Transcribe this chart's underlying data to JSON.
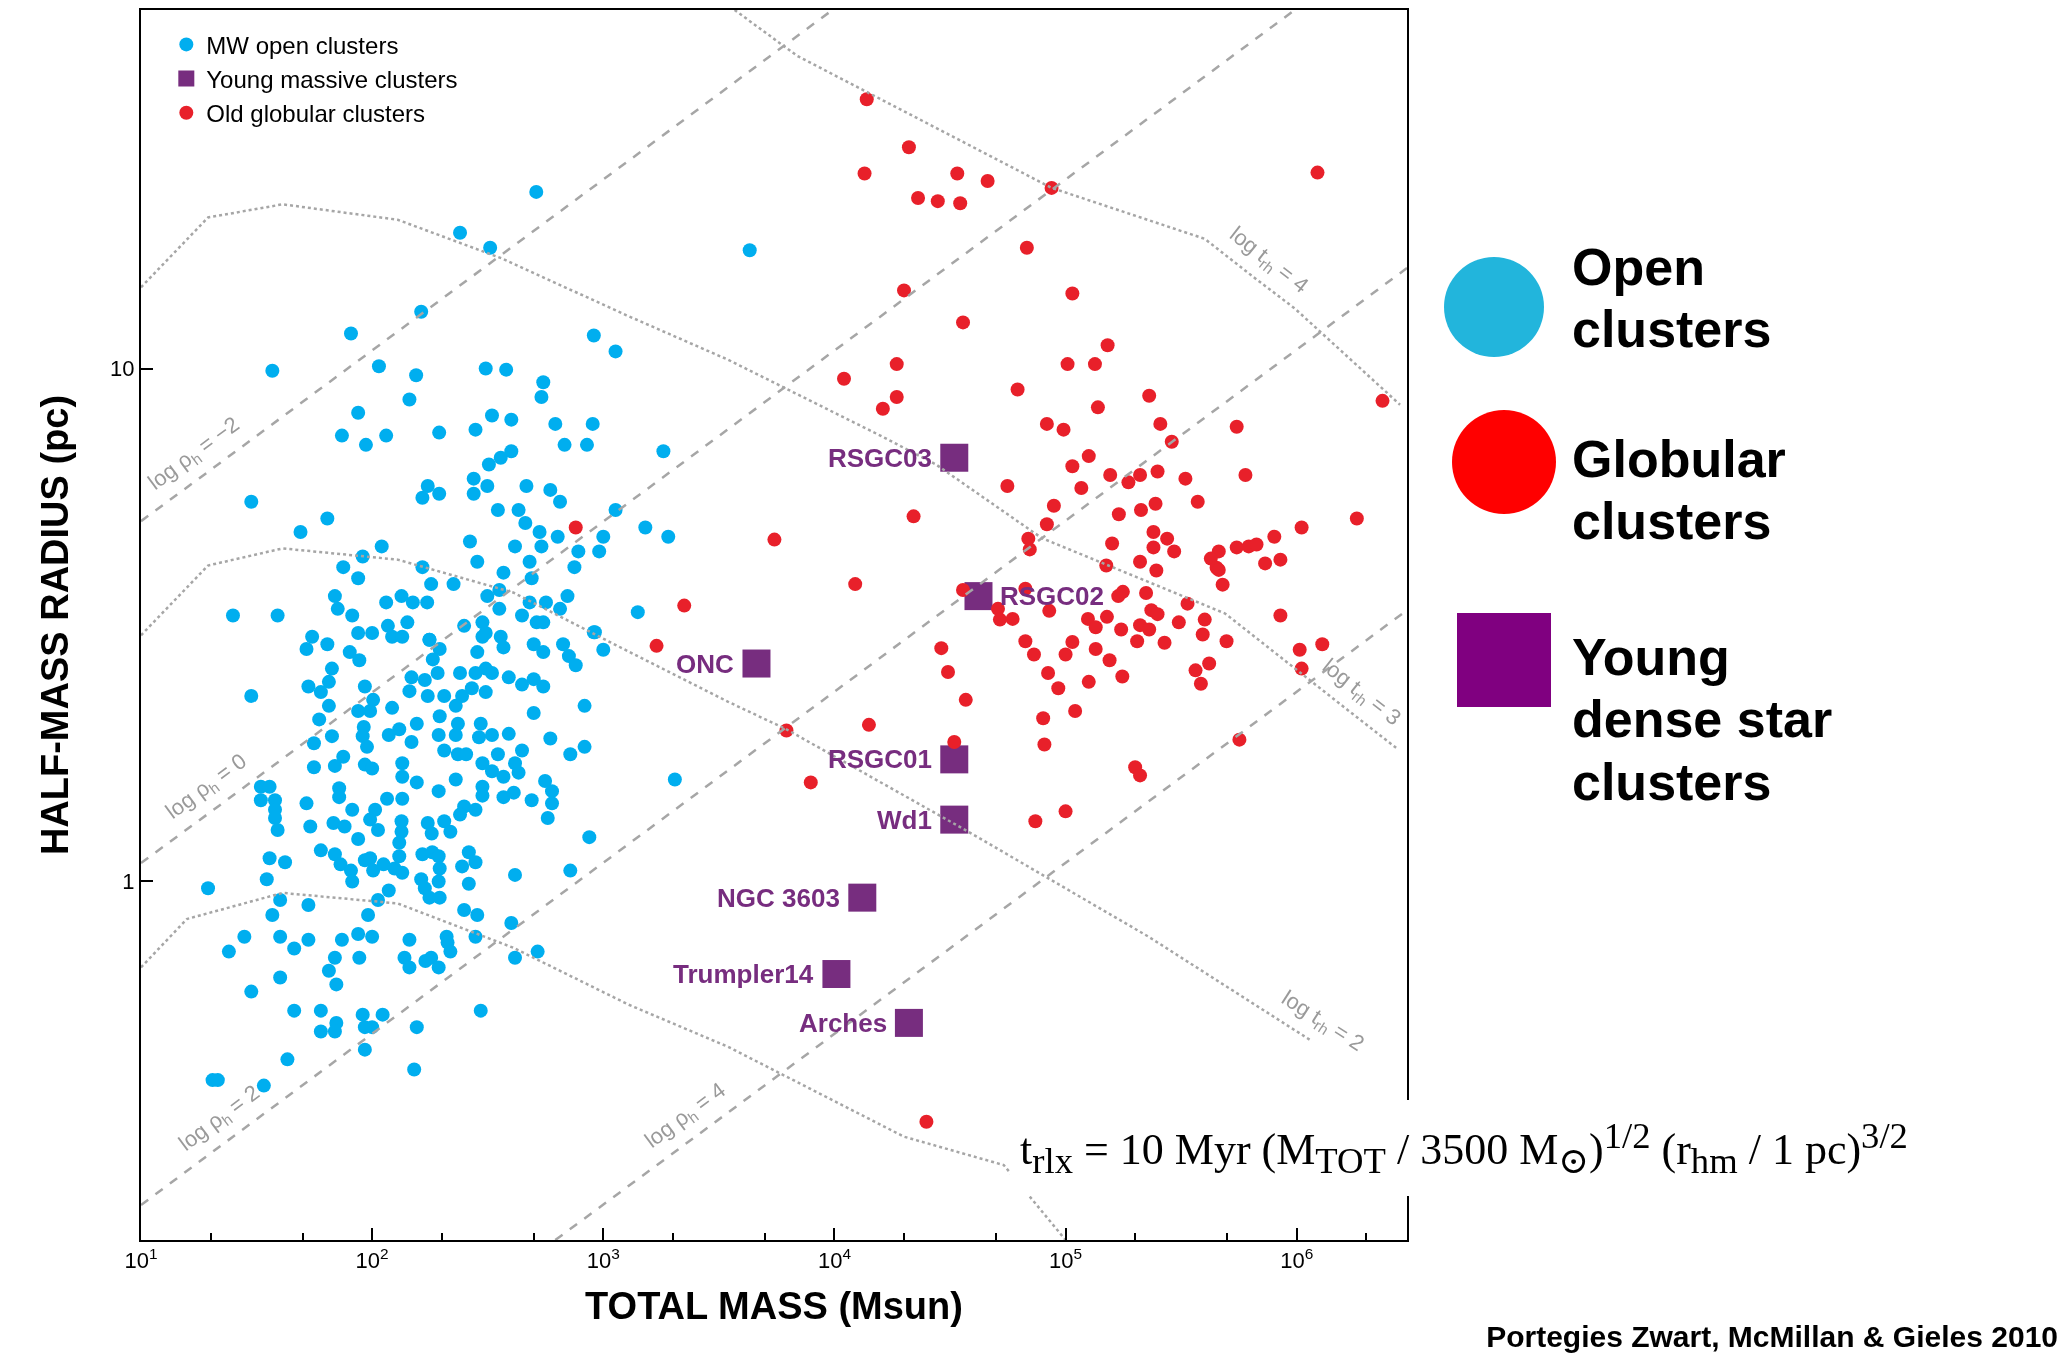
{
  "chart_data": {
    "type": "scatter",
    "xlabel": "TOTAL MASS (Msun)",
    "ylabel": "HALF-MASS RADIUS (pc)",
    "log": "xy",
    "grid": false,
    "legend": "top left",
    "xlim": [
      10,
      3000000
    ],
    "ylim": [
      0.2,
      50
    ],
    "xticks": [
      {
        "value": 10,
        "label": "10$^{1}$"
      },
      {
        "value": 100,
        "label": "10$^{2}$"
      },
      {
        "value": 1000,
        "label": "10$^{3}$"
      },
      {
        "value": 10000,
        "label": "10$^{4}$"
      },
      {
        "value": 100000,
        "label": "10$^{5}$"
      },
      {
        "value": 1000000,
        "label": "10$^{6}$"
      }
    ],
    "yticks": [
      1,
      10
    ],
    "series": [
      {
        "name": "MW open clusters",
        "color": "#00aeef",
        "marker": "circle",
        "x": [
          513,
          240,
          324,
          163,
          81,
          910,
          1130,
          37,
          107,
          310,
          380,
          155,
          550,
          540,
          145,
          87,
          330,
          400,
          74,
          115,
          195,
          280,
          94,
          620,
          900,
          680,
          850,
          1820,
          360,
          400,
          320,
          275,
          315,
          174,
          165,
          195,
          275,
          465,
          590,
          650,
          30,
          64,
          49,
          350,
          430,
          460,
          530,
          635,
          1000,
          1520,
          1910,
          1130,
          265,
          110,
          415,
          540,
          780,
          960,
          91,
          75,
          285,
          370,
          480,
          490,
          750,
          165,
          87,
          180,
          225,
          355,
          315,
          134,
          69,
          71,
          115,
          150,
          173,
          355,
          480,
          565,
          700,
          650,
          445,
          1410,
          25,
          39,
          82,
          142,
          250,
          300,
          515,
          550,
          117,
          55,
          87,
          100,
          310,
          360,
          910,
          122,
          177,
          4300,
          30,
          52,
          64,
          80,
          88,
          67,
          65,
          53,
          60,
          93,
          65,
          59,
          56,
          56,
          67,
          87,
          101,
          98,
          122,
          92,
          91,
          95,
          118,
          131,
          148,
          75,
          93,
          100,
          69,
          72,
          72,
          135,
          135,
          156,
          156,
          169,
          174,
          145,
          148,
          135,
          196,
          177,
          183,
          240,
          192,
          205,
          245,
          270,
          310,
          280,
          310,
          330,
          285,
          300,
          370,
          500,
          550,
          670,
          710,
          760,
          920,
          1000,
          390,
          445,
          500,
          550,
          500,
          830,
          196,
          230,
          235,
          230,
          194,
          290,
          330,
          390,
          295,
          205,
          235,
          255,
          350,
          300,
          330,
          415,
          430,
          370,
          445,
          590,
          720,
          830,
          2040,
          230,
          194,
          300,
          300,
          370,
          410,
          560,
          600,
          600,
          575,
          490,
          870,
          720,
          415,
          33,
          36,
          38,
          33,
          38,
          38,
          39,
          52,
          54,
          68,
          76,
          82,
          98,
          106,
          103,
          116,
          135,
          134,
          134,
          131,
          87,
          174,
          181,
          205,
          218,
          250,
          240,
          280,
          60,
          69,
          73,
          81,
          82,
          93,
          98,
          101,
          112,
          125,
          131,
          135,
          165,
          182,
          194,
          196,
          163,
          194,
          169,
          177,
          196,
          118,
          106,
          245,
          262,
          280,
          262,
          36,
          42,
          35,
          19.5,
          40,
          53,
          37,
          28,
          40,
          24,
          46,
          53,
          74,
          87,
          100,
          96,
          69,
          88,
          65,
          70,
          40,
          30,
          138,
          145,
          145,
          170,
          180,
          194,
          210,
          212,
          218,
          250,
          285,
          280,
          400,
          415,
          520,
          295,
          46,
          60,
          70,
          60,
          69,
          91,
          100,
          111,
          93,
          156,
          93,
          43,
          20.4,
          21.5,
          34,
          152
        ],
        "values": [
          22.1,
          18.4,
          17.2,
          12.9,
          11.7,
          11.6,
          10.8,
          9.9,
          10.1,
          10.0,
          9.95,
          9.7,
          9.4,
          8.8,
          8.7,
          8.2,
          8.1,
          7.95,
          7.4,
          7.4,
          7.5,
          7.6,
          7.1,
          7.8,
          7.8,
          7.1,
          7.1,
          6.9,
          6.7,
          6.9,
          6.5,
          6.1,
          5.9,
          5.9,
          5.6,
          5.7,
          5.7,
          5.9,
          5.8,
          5.5,
          5.5,
          5.1,
          4.8,
          5.3,
          5.3,
          5.0,
          4.8,
          4.7,
          4.7,
          4.9,
          4.7,
          5.3,
          4.6,
          4.5,
          4.5,
          4.5,
          4.4,
          4.4,
          4.3,
          4.1,
          4.2,
          4.0,
          4.2,
          3.9,
          4.1,
          4.1,
          3.9,
          3.8,
          3.8,
          3.7,
          3.6,
          3.6,
          3.6,
          3.4,
          3.5,
          3.5,
          3.5,
          3.4,
          3.5,
          3.5,
          3.6,
          3.4,
          3.3,
          3.35,
          3.3,
          3.3,
          3.3,
          3.2,
          3.15,
          3.2,
          3.2,
          3.2,
          3.15,
          3.0,
          3.05,
          3.05,
          3.05,
          3.0,
          3.06,
          3.0,
          2.96,
          17,
          2.3,
          2.84,
          2.9,
          2.8,
          2.7,
          2.6,
          2.45,
          2.4,
          2.34,
          2.4,
          2.2,
          2.07,
          1.86,
          1.67,
          1.92,
          2.15,
          2.26,
          2.15,
          2.18,
          2.0,
          1.92,
          1.83,
          1.93,
          1.98,
          1.87,
          1.75,
          1.69,
          1.66,
          1.68,
          1.52,
          1.46,
          1.7,
          1.6,
          1.56,
          2.03,
          2.47,
          2.3,
          2.35,
          2.5,
          3.0,
          2.84,
          2.96,
          2.71,
          2.55,
          2.55,
          2.3,
          2.3,
          2.38,
          2.34,
          2.55,
          2.6,
          2.55,
          2.8,
          3.0,
          2.86,
          2.9,
          2.8,
          2.9,
          2.75,
          2.64,
          3.06,
          2.83,
          2.5,
          2.42,
          2.48,
          2.4,
          2.13,
          2.2,
          2.1,
          2.2,
          2.03,
          1.93,
          1.93,
          1.91,
          1.93,
          1.94,
          2.03,
          1.8,
          1.77,
          1.77,
          1.77,
          1.7,
          1.64,
          1.7,
          1.63,
          1.6,
          1.8,
          1.9,
          1.77,
          1.83,
          1.58,
          1.58,
          1.5,
          1.53,
          1.47,
          1.46,
          1.49,
          1.57,
          1.5,
          1.42,
          1.33,
          1.44,
          1.22,
          1.05,
          1.03,
          1.53,
          1.53,
          1.44,
          1.44,
          1.38,
          1.33,
          1.26,
          1.42,
          1.28,
          1.3,
          1.28,
          1.38,
          1.32,
          1.26,
          1.38,
          1.45,
          1.45,
          1.31,
          1.25,
          1.19,
          1.21,
          1.3,
          1.24,
          1.31,
          1.25,
          1.4,
          1.35,
          1.38,
          1.15,
          1.13,
          1.08,
          1.05,
          1.0,
          1.1,
          1.11,
          1.05,
          1.08,
          1.06,
          1.12,
          1.04,
          1.13,
          1.14,
          1.12,
          1.06,
          1.01,
          1.0,
          0.97,
          0.93,
          0.93,
          0.96,
          0.92,
          1.07,
          1.14,
          1.09,
          0.99,
          1.11,
          1.09,
          1.01,
          0.97,
          0.92,
          0.9,
          0.86,
          0.78,
          0.78,
          0.73,
          0.74,
          0.77,
          0.77,
          0.79,
          0.78,
          0.86,
          0.71,
          0.71,
          0.67,
          0.63,
          0.65,
          0.61,
          0.71,
          0.68,
          0.77,
          0.7,
          0.71,
          0.68,
          0.78,
          0.76,
          0.73,
          0.88,
          0.86,
          0.78,
          0.83,
          0.71,
          0.73,
          0.56,
          0.56,
          0.56,
          0.53,
          0.51,
          0.51,
          0.55,
          0.52,
          0.55,
          0.52,
          0.52,
          0.47,
          0.45,
          0.41,
          0.41,
          0.4,
          0.43
        ]
      },
      {
        "name": "Young massive clusters",
        "color": "#772d7f",
        "marker": "square",
        "x": [
          33000,
          42000,
          4600,
          33000,
          33000,
          13200,
          10200,
          21000
        ],
        "values": [
          6.7,
          3.6,
          2.66,
          1.73,
          1.32,
          0.93,
          0.66,
          0.53
        ]
      },
      {
        "name": "Old globular clusters",
        "color": "#e8202a",
        "marker": "circle",
        "x": [
          13800,
          21000,
          13500,
          34000,
          46000,
          23000,
          28000,
          35000,
          87000,
          1230000,
          68000,
          20000,
          107000,
          36000,
          152000,
          102000,
          134000,
          18600,
          11000,
          18600,
          16200,
          62000,
          230000,
          2350000,
          138000,
          83000,
          98000,
          257000,
          288000,
          550000,
          126000,
          107000,
          156000,
          210000,
          250000,
          330000,
          600000,
          56000,
          117000,
          22000,
          187000,
          89000,
          170000,
          212000,
          245000,
          373000,
          1050000,
          1820000,
          83000,
          69000,
          70000,
          159000,
          240000,
          240000,
          275000,
          295000,
          460000,
          425000,
          550000,
          620000,
          670000,
          800000,
          730000,
          850000,
          150000,
          210000,
          247000,
          450000,
          5500,
          760,
          12300,
          2240,
          1700,
          36000,
          67000,
          51000,
          52000,
          59000,
          85000,
          67000,
          73000,
          29000,
          31000,
          37000,
          84000,
          100000,
          107000,
          125000,
          135000,
          135000,
          151000,
          155000,
          174000,
          176000,
          169000,
          177000,
          204000,
          210000,
          230000,
          223000,
          235000,
          250000,
          268000,
          309000,
          337000,
          400000,
          392000,
          418000,
          365000,
          385000,
          497000,
          478000,
          460000,
          850000,
          1030000,
          1050000,
          1290000,
          126000,
          93000,
          110000,
          80000,
          81000,
          14100,
          6200,
          33000,
          7900,
          200000,
          210000,
          74000,
          100000,
          565000,
          25000
        ],
        "values": [
          33.5,
          27,
          24,
          24,
          23.2,
          21.5,
          21.2,
          21,
          22.5,
          24.1,
          17.2,
          14.2,
          14,
          12.3,
          11.1,
          10.2,
          10.2,
          10.2,
          9.55,
          8.8,
          8.35,
          9.1,
          8.85,
          8.65,
          8.4,
          7.8,
          7.6,
          7.8,
          7.2,
          7.7,
          6.75,
          6.45,
          6.2,
          6.2,
          6.3,
          6.1,
          6.2,
          5.9,
          5.85,
          5.15,
          6.0,
          5.4,
          5.2,
          5.3,
          5.45,
          5.5,
          4.9,
          5.1,
          4.97,
          4.66,
          4.44,
          4.56,
          4.8,
          4.48,
          4.66,
          4.4,
          4.4,
          4.26,
          4.48,
          4.5,
          4.54,
          4.7,
          4.17,
          4.24,
          4.13,
          4.2,
          4.04,
          4.09,
          4.64,
          4.9,
          3.8,
          3.45,
          2.88,
          3.7,
          3.72,
          3.4,
          3.24,
          3.25,
          3.37,
          2.94,
          2.77,
          2.85,
          2.56,
          2.26,
          2.55,
          2.77,
          2.93,
          3.25,
          3.13,
          2.84,
          3.28,
          2.7,
          3.1,
          2.51,
          3.6,
          3.67,
          2.94,
          3.16,
          3.1,
          3.65,
          3.38,
          3.32,
          2.92,
          3.2,
          3.48,
          3.24,
          3.03,
          2.66,
          2.58,
          2.43,
          2.94,
          3.79,
          4.05,
          3.3,
          2.83,
          2.6,
          2.9,
          2.45,
          2.38,
          2.15,
          2.08,
          1.85,
          2.02,
          1.97,
          1.87,
          1.56,
          1.67,
          1.61,
          1.31,
          1.37,
          1.89,
          0.34
        ]
      },
      {
        "type": "line",
        "color": "#a6a6a6",
        "marker": "none",
        "line_style": "dashed",
        "x": [
          10,
          19.5,
          9800
        ],
        "values": [
          5.04,
          6.29,
          50
        ]
      },
      {
        "type": "line",
        "color": "#a6a6a6",
        "marker": "none",
        "line_style": "dashed",
        "x": [
          10,
          22,
          980000
        ],
        "values": [
          1.086,
          1.41,
          50
        ]
      },
      {
        "type": "line",
        "color": "#a6a6a6",
        "marker": "none",
        "line_style": "dashed",
        "x": [
          10,
          25,
          3000000
        ],
        "values": [
          0.234,
          0.318,
          15.7
        ]
      },
      {
        "type": "line",
        "color": "#a6a6a6",
        "marker": "none",
        "line_style": "dashed",
        "x": [
          620,
          2600,
          3000000
        ],
        "values": [
          0.2,
          0.322,
          3.38
        ]
      },
      {
        "type": "line",
        "color": "#a6a6a6",
        "marker": "none",
        "line_style": "dotted",
        "x": [
          3700,
          6900,
          87000,
          400000,
          660000,
          980000,
          2800000
        ],
        "values": [
          50,
          40.7,
          22.5,
          17.9,
          15.0,
          13.1,
          8.5
        ]
      },
      {
        "type": "line",
        "color": "#a6a6a6",
        "marker": "none",
        "line_style": "dotted",
        "x": [
          10,
          19.5,
          41,
          129,
          363,
          1260,
          3470,
          15800,
          27500,
          79000,
          490000,
          1660000,
          2700000
        ],
        "values": [
          14.4,
          19.7,
          20.9,
          19.5,
          16.4,
          12.7,
          10.4,
          7.4,
          6.5,
          4.67,
          3.33,
          2.16,
          1.82
        ]
      },
      {
        "type": "line",
        "color": "#a6a6a6",
        "marker": "none",
        "line_style": "dotted",
        "x": [
          10,
          19.5,
          41,
          129,
          407,
          1150,
          3470,
          6200,
          38000,
          229000,
          1150000
        ],
        "values": [
          3.02,
          4.13,
          4.46,
          4.24,
          3.66,
          2.88,
          2.24,
          1.98,
          1.25,
          0.78,
          0.49
        ]
      },
      {
        "type": "line",
        "color": "#a6a6a6",
        "marker": "none",
        "line_style": "dotted",
        "x": [
          10,
          15.8,
          41,
          129,
          407,
          1290,
          3470,
          20000,
          54000,
          100000
        ],
        "values": [
          0.68,
          0.845,
          0.95,
          0.906,
          0.743,
          0.575,
          0.476,
          0.318,
          0.28,
          0.2
        ]
      }
    ],
    "annotations": [
      "Open clusters",
      "Globular clusters",
      "Young dense star clusters",
      "t$_{rlx}$ = 10 Myr (M$_{TOT}$ / 3500 M$_{⊙}$)$^{1/2}$ (r$_{hm}$ / 1 pc)$^{3/2}$",
      "Portegies Zwart, McMillan & Gieles 2010",
      {
        "text": "RSGC03",
        "x": 33000,
        "y": 6.7
      },
      {
        "text": "RSGC02",
        "x": 42000,
        "y": 3.6
      },
      {
        "text": "ONC",
        "x": 4600,
        "y": 2.66
      },
      {
        "text": "RSGC01",
        "x": 33000,
        "y": 1.73
      },
      {
        "text": "Wd1",
        "x": 33000,
        "y": 1.32
      },
      {
        "text": "NGC 3603",
        "x": 13200,
        "y": 0.93
      },
      {
        "text": "Trumpler14",
        "x": 10200,
        "y": 0.66
      },
      {
        "text": "Arches",
        "x": 21000,
        "y": 0.53
      },
      {
        "text": "log ρ$_{h}$ = −2",
        "x": 19.5,
        "y": 6.29
      },
      {
        "text": "log ρ$_{h}$ = 0",
        "x": 22,
        "y": 1.41
      },
      {
        "text": "log ρ$_{h}$ = 2",
        "x": 25,
        "y": 0.318
      },
      {
        "text": "log ρ$_{h}$ = 4",
        "x": 2600,
        "y": 0.322
      },
      {
        "text": "log t$_{rh}$ = 4",
        "x": 660000,
        "y": 15.0
      },
      {
        "text": "log t$_{rh}$ = 3",
        "x": 1660000,
        "y": 2.16
      },
      {
        "text": "log t$_{rh}$ = 2",
        "x": 1150000,
        "y": 0.49
      }
    ]
  }
}
